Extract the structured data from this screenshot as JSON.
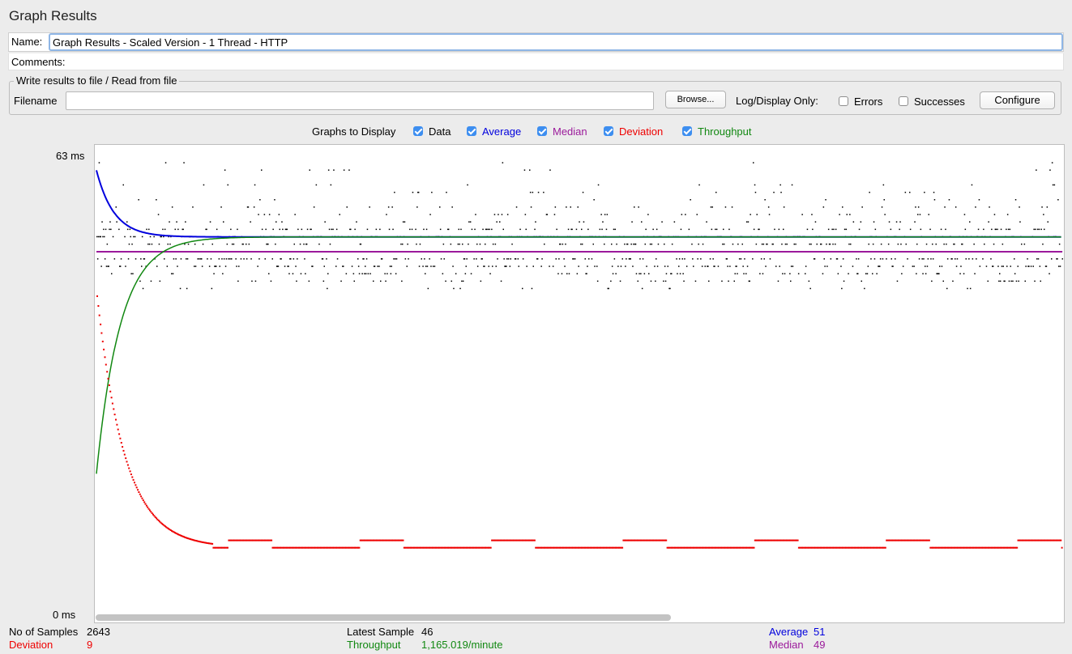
{
  "title": "Graph Results",
  "name": {
    "label": "Name:",
    "value": "Graph Results - Scaled Version - 1 Thread - HTTP"
  },
  "comments": {
    "label": "Comments:"
  },
  "file": {
    "legend": "Write results to file / Read from file",
    "filename_label": "Filename",
    "filename_value": "",
    "browse_label": "Browse...",
    "log_display_label": "Log/Display Only:",
    "errors_label": "Errors",
    "errors_checked": false,
    "successes_label": "Successes",
    "successes_checked": false,
    "configure_label": "Configure"
  },
  "graphs_to_display": {
    "label": "Graphs to Display",
    "options": [
      {
        "label": "Data",
        "checked": true,
        "color": "#000000"
      },
      {
        "label": "Average",
        "checked": true,
        "color": "#0000dd"
      },
      {
        "label": "Median",
        "checked": true,
        "color": "#9b1a9b"
      },
      {
        "label": "Deviation",
        "checked": true,
        "color": "#ee0000"
      },
      {
        "label": "Throughput",
        "checked": true,
        "color": "#118811"
      }
    ]
  },
  "chart_data": {
    "type": "scatter",
    "y_max_label": "63 ms",
    "y_min_label": "0 ms",
    "ylim": [
      0,
      63
    ],
    "n_samples": 2643,
    "series": [
      {
        "name": "Data",
        "color": "#000000",
        "band_ms": [
          42,
          61
        ]
      },
      {
        "name": "Average",
        "color": "#0000dd",
        "start_ms": 60,
        "final_ms": 51
      },
      {
        "name": "Median",
        "color": "#9b1a9b",
        "final_ms": 49
      },
      {
        "name": "Deviation",
        "color": "#ee0000",
        "start_ms": 43,
        "final_ms": 9
      },
      {
        "name": "Throughput",
        "color": "#118811",
        "start_ms": 19,
        "final_ms": 51
      }
    ]
  },
  "stats": {
    "samples_label": "No of Samples",
    "samples_value": "2643",
    "latest_label": "Latest Sample",
    "latest_value": "46",
    "average_label": "Average",
    "average_value": "51",
    "deviation_label": "Deviation",
    "deviation_value": "9",
    "throughput_label": "Throughput",
    "throughput_value": "1,165.019/minute",
    "median_label": "Median",
    "median_value": "49"
  },
  "colors": {
    "data": "#000000",
    "average": "#0000dd",
    "median": "#9b1a9b",
    "deviation": "#ee0000",
    "throughput": "#118811",
    "accent": "#3d8ef0"
  }
}
